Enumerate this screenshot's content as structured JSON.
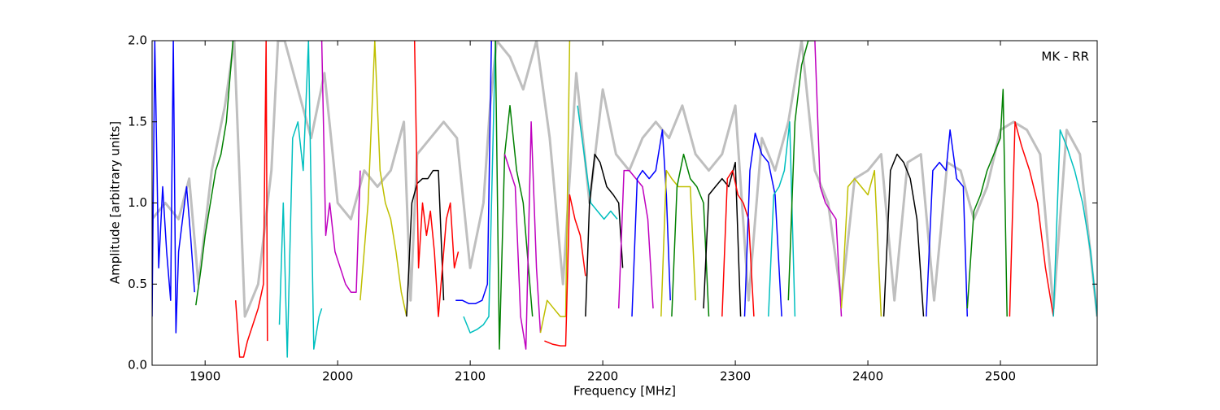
{
  "chart_data": {
    "type": "line",
    "annotation": "MK - RR",
    "xlabel": "Frequency [MHz]",
    "ylabel": "Amplitude [arbitrary units]",
    "xlim": [
      1860,
      2573
    ],
    "ylim": [
      0,
      2
    ],
    "xticks": [
      1900,
      2000,
      2100,
      2200,
      2300,
      2400,
      2500
    ],
    "yticks": [
      {
        "value": 0,
        "label": "0.0"
      },
      0.5,
      {
        "value": 1,
        "label": "1.0"
      },
      1.5,
      {
        "value": 2,
        "label": "2.0"
      }
    ],
    "grid": false,
    "series": [
      {
        "color": "#bfbfbf",
        "x": [
          1860,
          1870,
          1880,
          1888,
          1895,
          1905,
          1915,
          1922,
          1930,
          1940,
          1950,
          1955,
          1960,
          1970,
          1980,
          1990,
          2000,
          2010,
          2020,
          2030,
          2040,
          2050,
          2055,
          2060,
          2070,
          2080,
          2090,
          2100,
          2110,
          2115,
          2120,
          2130,
          2140,
          2150,
          2160,
          2170,
          2180,
          2190,
          2200,
          2210,
          2220,
          2230,
          2240,
          2250,
          2260,
          2270,
          2280,
          2290,
          2300,
          2310,
          2320,
          2330,
          2340,
          2350,
          2360,
          2370,
          2380,
          2390,
          2400,
          2410,
          2420,
          2430,
          2440,
          2450,
          2460,
          2470,
          2480,
          2490,
          2500,
          2510,
          2520,
          2530,
          2540,
          2550,
          2560,
          2573
        ],
        "values": [
          0.9,
          1.0,
          0.9,
          1.15,
          0.5,
          1.2,
          1.6,
          2.0,
          0.3,
          0.5,
          1.2,
          2.0,
          2.0,
          1.7,
          1.4,
          1.8,
          1.0,
          0.9,
          1.2,
          1.1,
          1.2,
          1.5,
          0.4,
          1.3,
          1.4,
          1.5,
          1.4,
          0.6,
          1.0,
          1.6,
          2.0,
          1.9,
          1.7,
          2.0,
          1.4,
          0.5,
          1.8,
          1.0,
          1.7,
          1.3,
          1.2,
          1.4,
          1.5,
          1.4,
          1.6,
          1.3,
          1.2,
          1.3,
          1.6,
          0.4,
          1.4,
          1.2,
          1.5,
          2.0,
          1.2,
          1.0,
          0.4,
          1.15,
          1.2,
          1.3,
          0.4,
          1.25,
          1.3,
          0.4,
          1.25,
          1.2,
          0.9,
          1.1,
          1.45,
          1.5,
          1.45,
          1.3,
          0.35,
          1.45,
          1.3,
          0.3
        ]
      },
      {
        "color": "#0000ff",
        "x": [
          1860,
          1862,
          1865,
          1868,
          1871,
          1874,
          1876,
          1878,
          1880,
          1883,
          1886,
          1889,
          1892
        ],
        "values": [
          0.3,
          2.0,
          0.6,
          1.1,
          0.7,
          0.4,
          2.0,
          0.2,
          0.7,
          0.9,
          1.1,
          0.8,
          0.45
        ]
      },
      {
        "color": "#008000",
        "x": [
          1893,
          1897,
          1900,
          1904,
          1908,
          1912,
          1916,
          1919,
          1921
        ],
        "values": [
          0.37,
          0.6,
          0.8,
          1.0,
          1.2,
          1.3,
          1.5,
          1.8,
          2.0
        ]
      },
      {
        "color": "#ff0000",
        "x": [
          1923,
          1926,
          1929,
          1932,
          1936,
          1940,
          1944,
          1946,
          1947
        ],
        "values": [
          0.4,
          0.05,
          0.05,
          0.15,
          0.25,
          0.35,
          0.5,
          2.0,
          0.15
        ]
      },
      {
        "color": "#00bfbf",
        "x": [
          1956,
          1959,
          1962,
          1966,
          1970,
          1974,
          1978,
          1982,
          1986,
          1988
        ],
        "values": [
          0.25,
          1.0,
          0.05,
          1.4,
          1.5,
          1.2,
          2.0,
          0.1,
          0.3,
          0.35
        ]
      },
      {
        "color": "#bf00bf",
        "x": [
          1988,
          1991,
          1994,
          1998,
          2002,
          2006,
          2010,
          2014,
          2017
        ],
        "values": [
          2.0,
          0.8,
          1.0,
          0.7,
          0.6,
          0.5,
          0.45,
          0.45,
          1.2
        ]
      },
      {
        "color": "#bfbf00",
        "x": [
          2017,
          2023,
          2028,
          2032,
          2036,
          2040,
          2044,
          2048,
          2052
        ],
        "values": [
          0.4,
          1.0,
          2.0,
          1.2,
          1.0,
          0.9,
          0.7,
          0.45,
          0.3
        ]
      },
      {
        "color": "#000000",
        "x": [
          2052,
          2056,
          2060,
          2064,
          2068,
          2072,
          2076,
          2080
        ],
        "values": [
          0.3,
          1.0,
          1.12,
          1.15,
          1.15,
          1.2,
          1.2,
          0.4
        ]
      },
      {
        "color": "#ff0000",
        "x": [
          2058,
          2061,
          2064,
          2067,
          2070,
          2073,
          2076,
          2079,
          2082,
          2085,
          2088,
          2091
        ],
        "values": [
          2.0,
          0.6,
          1.0,
          0.8,
          0.95,
          0.7,
          0.3,
          0.6,
          0.9,
          1.0,
          0.6,
          0.7
        ]
      },
      {
        "color": "#0000ff",
        "x": [
          2089,
          2094,
          2099,
          2104,
          2109,
          2113,
          2116
        ],
        "values": [
          0.4,
          0.4,
          0.38,
          0.38,
          0.4,
          0.5,
          2.0
        ]
      },
      {
        "color": "#00bfbf",
        "x": [
          2095,
          2100,
          2105,
          2110,
          2114,
          2119
        ],
        "values": [
          0.3,
          0.2,
          0.22,
          0.25,
          0.3,
          2.0
        ]
      },
      {
        "color": "#008000",
        "x": [
          2119,
          2122,
          2126,
          2130,
          2135,
          2140,
          2144,
          2147
        ],
        "values": [
          2.0,
          0.1,
          1.3,
          1.6,
          1.2,
          1.0,
          0.6,
          0.3
        ]
      },
      {
        "color": "#bf00bf",
        "x": [
          2126,
          2130,
          2134,
          2138,
          2142,
          2146,
          2150,
          2153
        ],
        "values": [
          1.3,
          1.2,
          1.1,
          0.3,
          0.1,
          1.5,
          0.6,
          0.2
        ]
      },
      {
        "color": "#bfbf00",
        "x": [
          2153,
          2158,
          2163,
          2168,
          2172,
          2175
        ],
        "values": [
          0.2,
          0.4,
          0.35,
          0.3,
          0.3,
          2.0
        ]
      },
      {
        "color": "#ff0000",
        "x": [
          2156,
          2162,
          2168,
          2172,
          2175,
          2179,
          2183,
          2187
        ],
        "values": [
          0.15,
          0.13,
          0.12,
          0.12,
          1.05,
          0.9,
          0.8,
          0.55
        ]
      },
      {
        "color": "#00bfbf",
        "x": [
          2181,
          2186,
          2191,
          2196,
          2201,
          2206,
          2211
        ],
        "values": [
          1.6,
          1.3,
          1.0,
          0.95,
          0.9,
          0.95,
          0.9
        ]
      },
      {
        "color": "#000000",
        "x": [
          2187,
          2190,
          2194,
          2198,
          2203,
          2208,
          2212,
          2215
        ],
        "values": [
          0.3,
          1.0,
          1.3,
          1.25,
          1.1,
          1.05,
          1.0,
          0.6
        ]
      },
      {
        "color": "#bf00bf",
        "x": [
          2212,
          2216,
          2220,
          2225,
          2230,
          2234,
          2238
        ],
        "values": [
          0.35,
          1.2,
          1.2,
          1.15,
          1.1,
          0.9,
          0.35
        ]
      },
      {
        "color": "#0000ff",
        "x": [
          2222,
          2226,
          2230,
          2235,
          2240,
          2245,
          2248,
          2251
        ],
        "values": [
          0.3,
          1.15,
          1.2,
          1.15,
          1.2,
          1.45,
          1.05,
          0.4
        ]
      },
      {
        "color": "#bfbf00",
        "x": [
          2244,
          2248,
          2252,
          2257,
          2262,
          2266,
          2270
        ],
        "values": [
          0.3,
          1.2,
          1.15,
          1.1,
          1.1,
          1.1,
          0.4
        ]
      },
      {
        "color": "#008000",
        "x": [
          2252,
          2256,
          2261,
          2266,
          2271,
          2276,
          2280
        ],
        "values": [
          0.3,
          1.1,
          1.3,
          1.15,
          1.1,
          1.0,
          0.3
        ]
      },
      {
        "color": "#000000",
        "x": [
          2276,
          2280,
          2285,
          2290,
          2295,
          2300,
          2304
        ],
        "values": [
          0.35,
          1.05,
          1.1,
          1.15,
          1.1,
          1.25,
          0.3
        ]
      },
      {
        "color": "#ff0000",
        "x": [
          2290,
          2294,
          2298,
          2302,
          2306,
          2310,
          2314
        ],
        "values": [
          0.3,
          1.15,
          1.2,
          1.05,
          1.0,
          0.9,
          0.3
        ]
      },
      {
        "color": "#0000ff",
        "x": [
          2307,
          2311,
          2315,
          2320,
          2325,
          2330,
          2335
        ],
        "values": [
          0.3,
          1.2,
          1.43,
          1.3,
          1.25,
          1.05,
          0.3
        ]
      },
      {
        "color": "#00bfbf",
        "x": [
          2325,
          2329,
          2333,
          2337,
          2341,
          2345
        ],
        "values": [
          0.3,
          1.05,
          1.1,
          1.2,
          1.5,
          0.3
        ]
      },
      {
        "color": "#008000",
        "x": [
          2340,
          2345,
          2350,
          2355,
          2360
        ],
        "values": [
          0.4,
          1.5,
          1.85,
          2.0,
          2.0
        ]
      },
      {
        "color": "#bf00bf",
        "x": [
          2360,
          2364,
          2368,
          2372,
          2376,
          2380
        ],
        "values": [
          2.0,
          1.1,
          1.0,
          0.95,
          0.9,
          0.3
        ]
      },
      {
        "color": "#bfbf00",
        "x": [
          2380,
          2385,
          2390,
          2395,
          2400,
          2405,
          2410
        ],
        "values": [
          0.35,
          1.1,
          1.15,
          1.1,
          1.05,
          1.2,
          0.3
        ]
      },
      {
        "color": "#000000",
        "x": [
          2412,
          2417,
          2422,
          2427,
          2432,
          2437,
          2442
        ],
        "values": [
          0.3,
          1.2,
          1.3,
          1.25,
          1.15,
          0.9,
          0.3
        ]
      },
      {
        "color": "#0000ff",
        "x": [
          2444,
          2449,
          2454,
          2459,
          2462,
          2467,
          2472,
          2475
        ],
        "values": [
          0.3,
          1.2,
          1.25,
          1.2,
          1.45,
          1.15,
          1.1,
          0.3
        ]
      },
      {
        "color": "#008000",
        "x": [
          2475,
          2480,
          2485,
          2490,
          2495,
          2500,
          2502,
          2505
        ],
        "values": [
          0.35,
          0.95,
          1.05,
          1.2,
          1.3,
          1.4,
          1.7,
          0.3
        ]
      },
      {
        "color": "#ff0000",
        "x": [
          2507,
          2511,
          2516,
          2522,
          2528,
          2534,
          2540
        ],
        "values": [
          0.3,
          1.5,
          1.35,
          1.2,
          1.0,
          0.6,
          0.3
        ]
      },
      {
        "color": "#00bfbf",
        "x": [
          2540,
          2545,
          2550,
          2556,
          2562,
          2568,
          2573
        ],
        "values": [
          0.3,
          1.45,
          1.35,
          1.2,
          1.0,
          0.7,
          0.3
        ]
      }
    ]
  }
}
